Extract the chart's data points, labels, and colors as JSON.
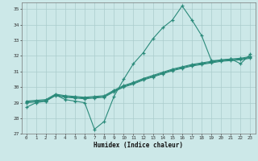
{
  "xlabel": "Humidex (Indice chaleur)",
  "bg_color": "#cce8e8",
  "grid_color": "#aacccc",
  "line_color": "#2a8a7a",
  "xlim": [
    -0.5,
    23.5
  ],
  "ylim": [
    27,
    35.4
  ],
  "xticks": [
    0,
    1,
    2,
    3,
    4,
    5,
    6,
    7,
    8,
    9,
    10,
    11,
    12,
    13,
    14,
    15,
    16,
    17,
    18,
    19,
    20,
    21,
    22,
    23
  ],
  "yticks": [
    27,
    28,
    29,
    30,
    31,
    32,
    33,
    34,
    35
  ],
  "line1_x": [
    0,
    1,
    2,
    3,
    4,
    5,
    6,
    7,
    8,
    9,
    10,
    11,
    12,
    13,
    14,
    15,
    16,
    17,
    18,
    19,
    20,
    21,
    22,
    23
  ],
  "line1_y": [
    28.7,
    29.0,
    29.1,
    29.5,
    29.2,
    29.1,
    29.0,
    27.3,
    27.8,
    29.4,
    30.5,
    31.5,
    32.2,
    33.1,
    33.8,
    34.3,
    35.2,
    34.3,
    33.3,
    31.7,
    31.7,
    31.8,
    31.5,
    32.1
  ],
  "line2_x": [
    0,
    1,
    2,
    3,
    4,
    5,
    6,
    7,
    8,
    9,
    10,
    11,
    12,
    13,
    14,
    15,
    16,
    17,
    18,
    19,
    20,
    21,
    22,
    23
  ],
  "line2_y": [
    29.0,
    29.05,
    29.1,
    29.45,
    29.35,
    29.3,
    29.25,
    29.3,
    29.35,
    29.7,
    30.0,
    30.2,
    30.45,
    30.65,
    30.85,
    31.05,
    31.2,
    31.35,
    31.45,
    31.55,
    31.65,
    31.7,
    31.75,
    31.85
  ],
  "line3_x": [
    0,
    1,
    2,
    3,
    4,
    5,
    6,
    7,
    8,
    9,
    10,
    11,
    12,
    13,
    14,
    15,
    16,
    17,
    18,
    19,
    20,
    21,
    22,
    23
  ],
  "line3_y": [
    29.05,
    29.1,
    29.15,
    29.5,
    29.4,
    29.35,
    29.3,
    29.35,
    29.4,
    29.75,
    30.05,
    30.25,
    30.5,
    30.7,
    30.9,
    31.1,
    31.25,
    31.4,
    31.5,
    31.6,
    31.7,
    31.75,
    31.8,
    31.9
  ],
  "line4_x": [
    0,
    1,
    2,
    3,
    4,
    5,
    6,
    7,
    8,
    9,
    10,
    11,
    12,
    13,
    14,
    15,
    16,
    17,
    18,
    19,
    20,
    21,
    22,
    23
  ],
  "line4_y": [
    29.1,
    29.15,
    29.2,
    29.55,
    29.45,
    29.4,
    29.35,
    29.4,
    29.45,
    29.8,
    30.1,
    30.3,
    30.55,
    30.75,
    30.95,
    31.15,
    31.3,
    31.45,
    31.55,
    31.65,
    31.75,
    31.8,
    31.85,
    31.95
  ]
}
